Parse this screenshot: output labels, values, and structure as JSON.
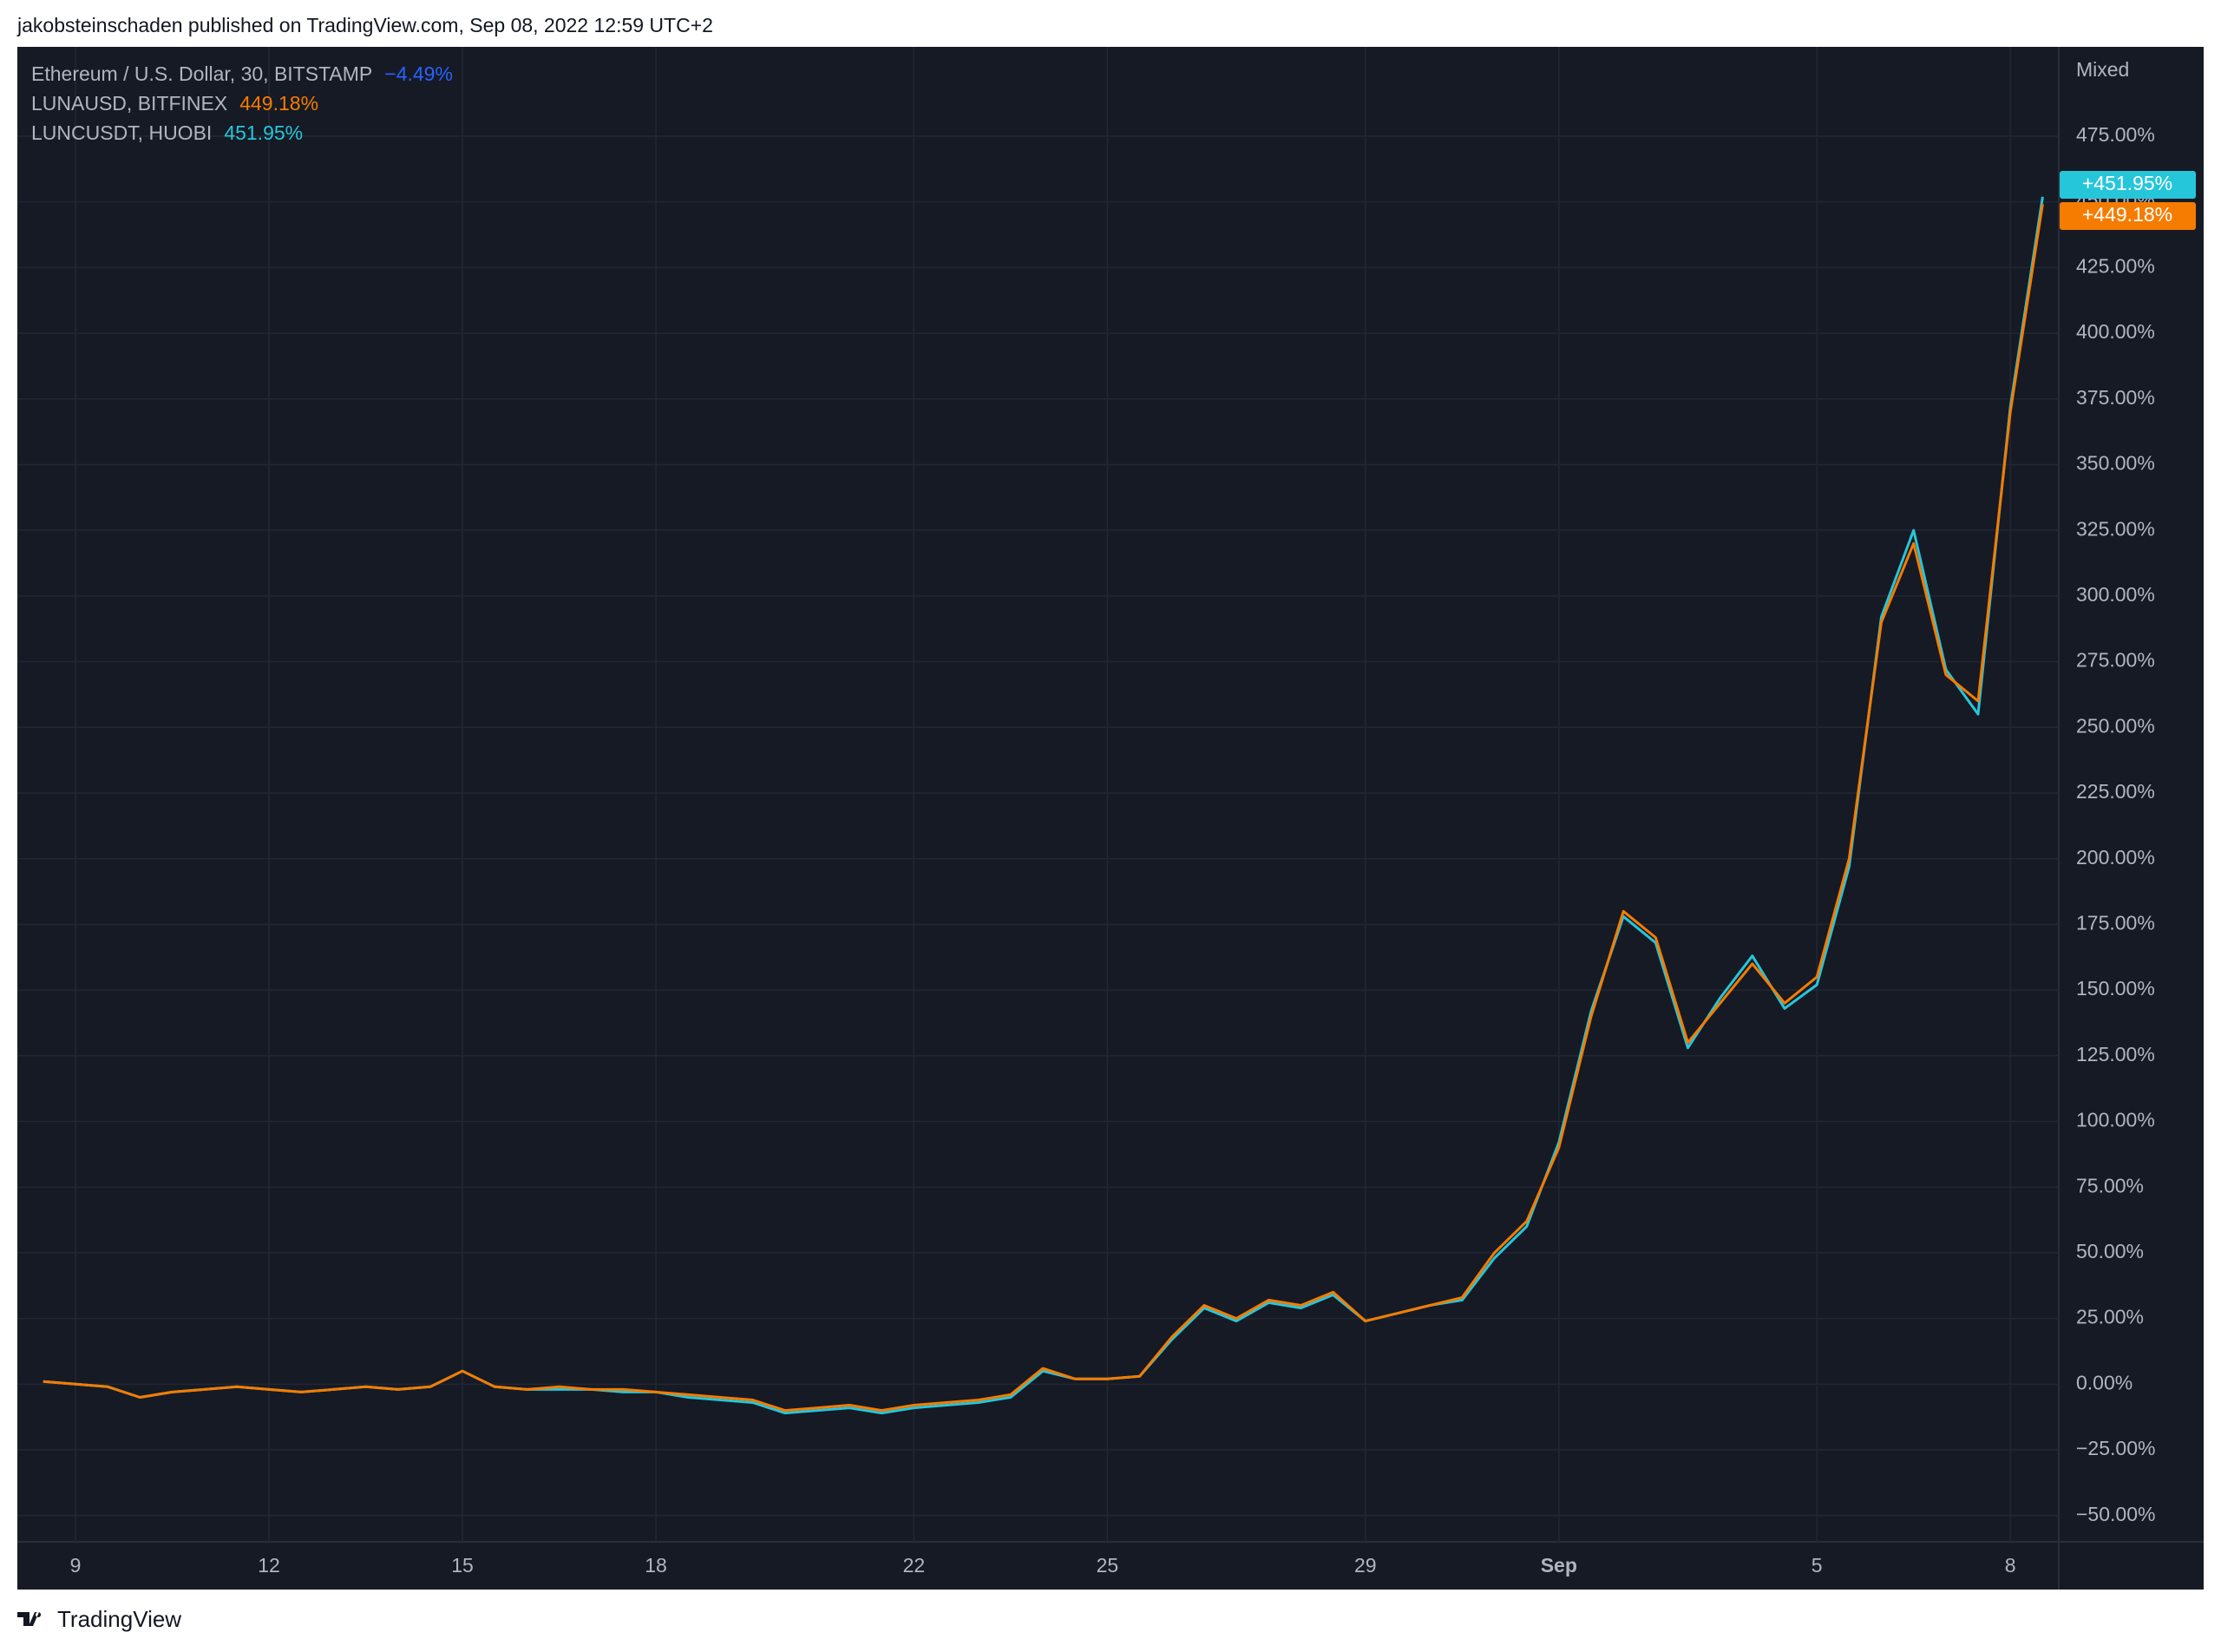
{
  "header": {
    "text": "jakobsteinschaden published on TradingView.com, Sep 08, 2022 12:59 UTC+2"
  },
  "footer": {
    "brand": "TradingView"
  },
  "chart_data": {
    "type": "line",
    "scale_label": "Mixed",
    "categories": [
      null,
      "9",
      null,
      null,
      null,
      null,
      null,
      "12",
      null,
      null,
      null,
      null,
      null,
      "15",
      null,
      null,
      null,
      null,
      null,
      "18",
      null,
      null,
      null,
      null,
      null,
      null,
      null,
      "22",
      null,
      null,
      null,
      null,
      null,
      "25",
      null,
      null,
      null,
      null,
      null,
      null,
      null,
      "29",
      null,
      null,
      null,
      null,
      null,
      "Sep",
      null,
      null,
      null,
      null,
      null,
      null,
      null,
      "5",
      null,
      null,
      null,
      null,
      null,
      "8",
      null
    ],
    "ylim": [
      -60,
      509
    ],
    "yticks": [
      {
        "value": -50,
        "label": "−50.00%"
      },
      {
        "value": -25,
        "label": "−25.00%"
      },
      {
        "value": 0,
        "label": "0.00%"
      },
      {
        "value": 25,
        "label": "25.00%"
      },
      {
        "value": 50,
        "label": "50.00%"
      },
      {
        "value": 75,
        "label": "75.00%"
      },
      {
        "value": 100,
        "label": "100.00%"
      },
      {
        "value": 125,
        "label": "125.00%"
      },
      {
        "value": 150,
        "label": "150.00%"
      },
      {
        "value": 175,
        "label": "175.00%"
      },
      {
        "value": 200,
        "label": "200.00%"
      },
      {
        "value": 225,
        "label": "225.00%"
      },
      {
        "value": 250,
        "label": "250.00%"
      },
      {
        "value": 275,
        "label": "275.00%"
      },
      {
        "value": 300,
        "label": "300.00%"
      },
      {
        "value": 325,
        "label": "325.00%"
      },
      {
        "value": 350,
        "label": "350.00%"
      },
      {
        "value": 375,
        "label": "375.00%"
      },
      {
        "value": 400,
        "label": "400.00%"
      },
      {
        "value": 425,
        "label": "425.00%"
      },
      {
        "value": 450,
        "label": "450.00%"
      },
      {
        "value": 475,
        "label": "475.00%"
      }
    ],
    "grid": true,
    "series": [
      {
        "name": "Ethereum / U.S. Dollar, 30, BITSTAMP",
        "color": "#2962ff",
        "change_label": "−4.49%"
      },
      {
        "name": "LUNAUSD, BITFINEX",
        "color": "#f57c00",
        "change": 449.18,
        "change_label": "449.18%",
        "tag_label": "+449.18%",
        "values": [
          1,
          0,
          -1,
          -5,
          -3,
          -2,
          -1,
          -2,
          -3,
          -2,
          -1,
          -2,
          -1,
          5,
          -1,
          -2,
          -1,
          -2,
          -2,
          -3,
          -4,
          -5,
          -6,
          -10,
          -9,
          -8,
          -10,
          -8,
          -7,
          -6,
          -4,
          6,
          2,
          2,
          3,
          18,
          30,
          25,
          32,
          30,
          35,
          24,
          27,
          30,
          33,
          50,
          62,
          90,
          140,
          180,
          170,
          130,
          145,
          160,
          145,
          155,
          200,
          290,
          320,
          270,
          260,
          370,
          449.18
        ]
      },
      {
        "name": "LUNCUSDT, HUOBI",
        "color": "#26c6da",
        "change": 451.95,
        "change_label": "451.95%",
        "tag_label": "+451.95%",
        "values": [
          1,
          0,
          -1,
          -5,
          -3,
          -2,
          -1,
          -2,
          -3,
          -2,
          -1,
          -2,
          -1,
          5,
          -1,
          -2,
          -2,
          -2,
          -3,
          -3,
          -5,
          -6,
          -7,
          -11,
          -10,
          -9,
          -11,
          -9,
          -8,
          -7,
          -5,
          5,
          2,
          2,
          3,
          17,
          29,
          24,
          31,
          29,
          34,
          24,
          27,
          30,
          32,
          48,
          60,
          92,
          142,
          178,
          168,
          128,
          147,
          163,
          143,
          152,
          197,
          292,
          325,
          272,
          255,
          372,
          451.95
        ]
      }
    ]
  }
}
